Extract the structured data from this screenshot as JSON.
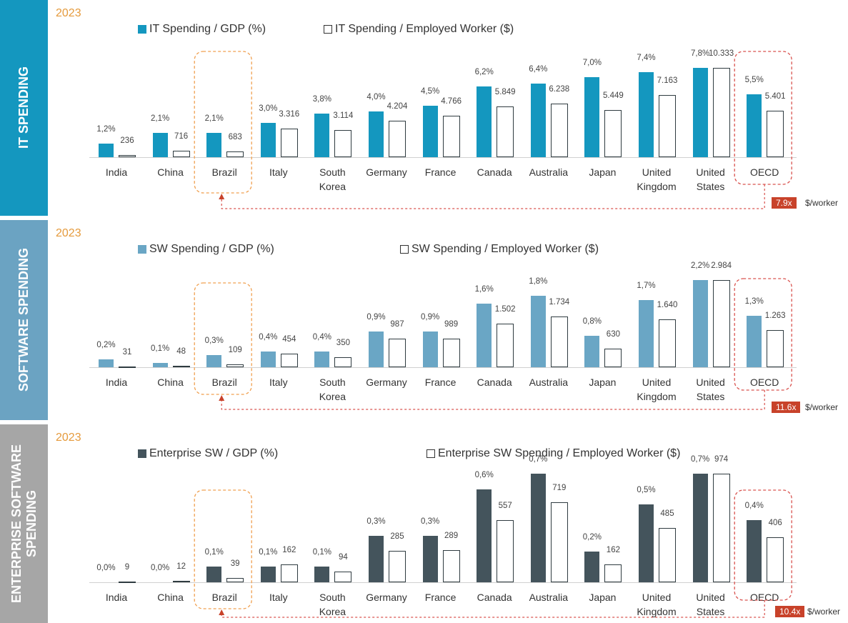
{
  "chart_data": [
    {
      "type": "bar",
      "section_title": "IT SPENDING",
      "title": "2023",
      "categories": [
        "India",
        "China",
        "Brazil",
        "Italy",
        "South Korea",
        "Germany",
        "France",
        "Canada",
        "Australia",
        "Japan",
        "United Kingdom",
        "United States",
        "OECD"
      ],
      "series": [
        {
          "name": "IT Spending / GDP (%)",
          "color": "#1497bf",
          "values": [
            1.2,
            2.1,
            2.1,
            3.0,
            3.8,
            4.0,
            4.5,
            6.2,
            6.4,
            7.0,
            7.4,
            7.8,
            5.5
          ],
          "value_labels": [
            "1,2%",
            "2,1%",
            "2,1%",
            "3,0%",
            "3,8%",
            "4,0%",
            "4,5%",
            "6,2%",
            "6,4%",
            "7,0%",
            "7,4%",
            "7,8%",
            "5,5%"
          ]
        },
        {
          "name": "IT Spending / Employed Worker ($)",
          "color": "#ffffff",
          "values": [
            236,
            716,
            683,
            3316,
            3114,
            4204,
            4766,
            5849,
            6238,
            5449,
            7163,
            10333,
            5401
          ],
          "value_labels": [
            "236",
            "716",
            "683",
            "3.316",
            "3.114",
            "4.204",
            "4.766",
            "5.849",
            "6.238",
            "5.449",
            "7.163",
            "10.333",
            "5.401"
          ]
        }
      ],
      "annotation": {
        "ratio": "7.9x",
        "unit": "$/worker"
      }
    },
    {
      "type": "bar",
      "section_title": "SOFTWARE SPENDING",
      "title": "2023",
      "categories": [
        "India",
        "China",
        "Brazil",
        "Italy",
        "South Korea",
        "Germany",
        "France",
        "Canada",
        "Australia",
        "Japan",
        "United Kingdom",
        "United States",
        "OECD"
      ],
      "series": [
        {
          "name": "SW Spending / GDP (%)",
          "color": "#6aa6c5",
          "values": [
            0.2,
            0.1,
            0.3,
            0.4,
            0.4,
            0.9,
            0.9,
            1.6,
            1.8,
            0.8,
            1.7,
            2.2,
            1.3
          ],
          "value_labels": [
            "0,2%",
            "0,1%",
            "0,3%",
            "0,4%",
            "0,4%",
            "0,9%",
            "0,9%",
            "1,6%",
            "1,8%",
            "0,8%",
            "1,7%",
            "2,2%",
            "1,3%"
          ]
        },
        {
          "name": "SW Spending / Employed Worker ($)",
          "color": "#ffffff",
          "values": [
            31,
            48,
            109,
            454,
            350,
            987,
            989,
            1502,
            1734,
            630,
            1640,
            2984,
            1263
          ],
          "value_labels": [
            "31",
            "48",
            "109",
            "454",
            "350",
            "987",
            "989",
            "1.502",
            "1.734",
            "630",
            "1.640",
            "2.984",
            "1.263"
          ]
        }
      ],
      "annotation": {
        "ratio": "11.6x",
        "unit": "$/worker"
      }
    },
    {
      "type": "bar",
      "section_title": "ENTERPRISE SOFTWARE SPENDING",
      "title": "2023",
      "categories": [
        "India",
        "China",
        "Brazil",
        "Italy",
        "South Korea",
        "Germany",
        "France",
        "Canada",
        "Australia",
        "Japan",
        "United Kingdom",
        "United States",
        "OECD"
      ],
      "series": [
        {
          "name": "Enterprise SW / GDP (%)",
          "color": "#44545c",
          "values": [
            0.0,
            0.0,
            0.1,
            0.1,
            0.1,
            0.3,
            0.3,
            0.6,
            0.7,
            0.2,
            0.5,
            0.7,
            0.4
          ],
          "value_labels": [
            "0,0%",
            "0,0%",
            "0,1%",
            "0,1%",
            "0,1%",
            "0,3%",
            "0,3%",
            "0,6%",
            "0,7%",
            "0,2%",
            "0,5%",
            "0,7%",
            "0,4%"
          ]
        },
        {
          "name": "Enterprise SW Spending / Employed Worker ($)",
          "color": "#ffffff",
          "values": [
            9,
            12,
            39,
            162,
            94,
            285,
            289,
            557,
            719,
            162,
            485,
            974,
            406
          ]
        }
      ],
      "annotation": {
        "ratio": "10.4x",
        "unit": "$/worker"
      }
    }
  ]
}
